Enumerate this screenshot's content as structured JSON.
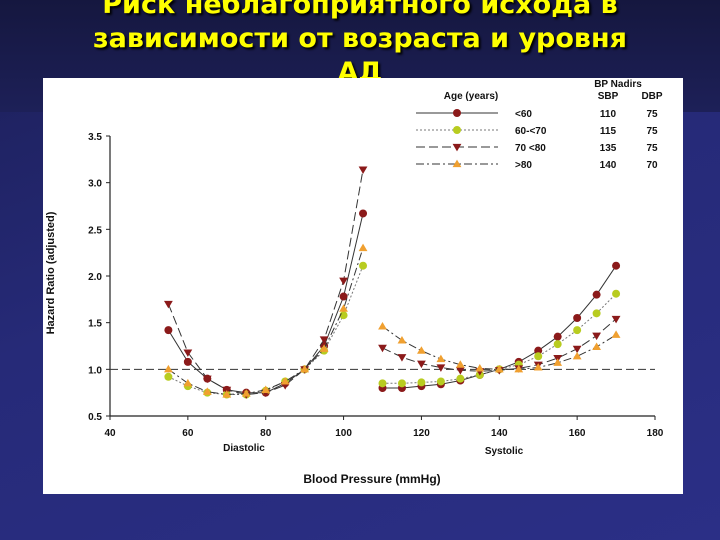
{
  "slide": {
    "title_line1": "Риск неблагоприятного исхода в",
    "title_line2": "зависимости от возраста и уровня",
    "title_line3": "АД"
  },
  "chart_data": {
    "type": "line",
    "ylabel": "Hazard Ratio (adjusted)",
    "xlabel": "Blood Pressure (mmHg)",
    "xlim": [
      40,
      180
    ],
    "ylim": [
      0.5,
      3.5
    ],
    "xticks": [
      40,
      60,
      80,
      100,
      120,
      140,
      160,
      180
    ],
    "yticks": [
      "0.5",
      "1.0",
      "1.5",
      "2.0",
      "2.5",
      "3.0",
      "3.5"
    ],
    "region_labels": [
      "Diastolic",
      "Systolic"
    ],
    "reference_line": 1.0,
    "legend": {
      "title": "Age (years)",
      "nadirs_title": "BP Nadirs",
      "sbp_header": "SBP",
      "dbp_header": "DBP"
    },
    "series": [
      {
        "name": "<60",
        "color": "#8b1a1a",
        "marker": "circle",
        "dash": "",
        "sbp_nadir": "110",
        "dbp_nadir": "75",
        "diastolic": [
          [
            55,
            1.42
          ],
          [
            60,
            1.08
          ],
          [
            65,
            0.9
          ],
          [
            70,
            0.78
          ],
          [
            75,
            0.75
          ],
          [
            80,
            0.75
          ],
          [
            85,
            0.85
          ],
          [
            90,
            1.0
          ],
          [
            95,
            1.25
          ],
          [
            100,
            1.78
          ],
          [
            105,
            2.67
          ]
        ],
        "systolic": [
          [
            110,
            0.8
          ],
          [
            115,
            0.8
          ],
          [
            120,
            0.82
          ],
          [
            125,
            0.84
          ],
          [
            130,
            0.88
          ],
          [
            135,
            0.94
          ],
          [
            140,
            1.0
          ],
          [
            145,
            1.08
          ],
          [
            150,
            1.2
          ],
          [
            155,
            1.35
          ],
          [
            160,
            1.55
          ],
          [
            165,
            1.8
          ],
          [
            170,
            2.11
          ]
        ]
      },
      {
        "name": "60-<70",
        "color": "#b8cc20",
        "marker": "circle",
        "dash": "2,2",
        "sbp_nadir": "115",
        "dbp_nadir": "75",
        "diastolic": [
          [
            55,
            0.92
          ],
          [
            60,
            0.82
          ],
          [
            65,
            0.75
          ],
          [
            70,
            0.73
          ],
          [
            75,
            0.73
          ],
          [
            80,
            0.77
          ],
          [
            85,
            0.87
          ],
          [
            90,
            1.0
          ],
          [
            95,
            1.2
          ],
          [
            100,
            1.58
          ],
          [
            105,
            2.11
          ]
        ],
        "systolic": [
          [
            110,
            0.85
          ],
          [
            115,
            0.85
          ],
          [
            120,
            0.86
          ],
          [
            125,
            0.87
          ],
          [
            130,
            0.9
          ],
          [
            135,
            0.94
          ],
          [
            140,
            1.0
          ],
          [
            145,
            1.05
          ],
          [
            150,
            1.14
          ],
          [
            155,
            1.27
          ],
          [
            160,
            1.42
          ],
          [
            165,
            1.6
          ],
          [
            170,
            1.81
          ]
        ]
      },
      {
        "name": "70 <80",
        "color": "#8b1a1a",
        "marker": "triangle-down",
        "dash": "9,4",
        "sbp_nadir": "135",
        "dbp_nadir": "75",
        "diastolic": [
          [
            55,
            1.7
          ],
          [
            60,
            1.18
          ],
          [
            65,
            0.9
          ],
          [
            70,
            0.78
          ],
          [
            75,
            0.73
          ],
          [
            80,
            0.75
          ],
          [
            85,
            0.83
          ],
          [
            90,
            1.0
          ],
          [
            95,
            1.32
          ],
          [
            100,
            1.95
          ],
          [
            105,
            3.14
          ]
        ],
        "systolic": [
          [
            110,
            1.23
          ],
          [
            115,
            1.13
          ],
          [
            120,
            1.06
          ],
          [
            125,
            1.02
          ],
          [
            130,
            0.99
          ],
          [
            135,
            0.98
          ],
          [
            140,
            0.99
          ],
          [
            145,
            1.01
          ],
          [
            150,
            1.05
          ],
          [
            155,
            1.12
          ],
          [
            160,
            1.22
          ],
          [
            165,
            1.36
          ],
          [
            170,
            1.54
          ]
        ]
      },
      {
        "name": ">80",
        "color": "#f0a030",
        "marker": "triangle-up",
        "dash": "8,3,2,3",
        "sbp_nadir": "140",
        "dbp_nadir": "70",
        "diastolic": [
          [
            55,
            1.0
          ],
          [
            60,
            0.85
          ],
          [
            65,
            0.76
          ],
          [
            70,
            0.73
          ],
          [
            75,
            0.74
          ],
          [
            80,
            0.78
          ],
          [
            85,
            0.87
          ],
          [
            90,
            1.0
          ],
          [
            95,
            1.22
          ],
          [
            100,
            1.65
          ],
          [
            105,
            2.3
          ]
        ],
        "systolic": [
          [
            110,
            1.46
          ],
          [
            115,
            1.31
          ],
          [
            120,
            1.2
          ],
          [
            125,
            1.11
          ],
          [
            130,
            1.05
          ],
          [
            135,
            1.01
          ],
          [
            140,
            1.0
          ],
          [
            145,
            1.0
          ],
          [
            150,
            1.02
          ],
          [
            155,
            1.07
          ],
          [
            160,
            1.14
          ],
          [
            165,
            1.24
          ],
          [
            170,
            1.37
          ]
        ]
      }
    ]
  }
}
